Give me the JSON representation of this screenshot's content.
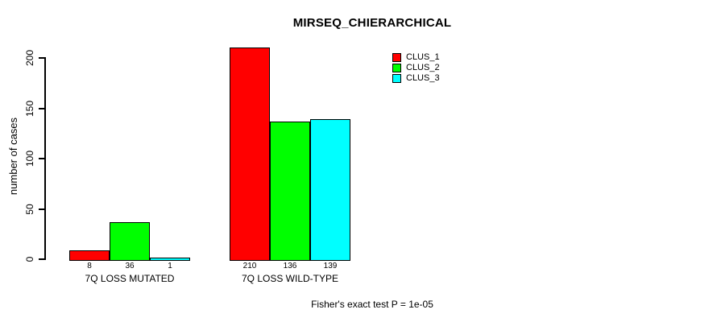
{
  "chart_data": {
    "type": "bar",
    "title": "MIRSEQ_CHIERARCHICAL",
    "xlabel": "",
    "ylabel": "number of cases",
    "categories": [
      "7Q LOSS MUTATED",
      "7Q LOSS WILD-TYPE"
    ],
    "series": [
      {
        "name": "CLUS_1",
        "color": "#ff0000",
        "values": [
          8,
          210
        ]
      },
      {
        "name": "CLUS_2",
        "color": "#00ff00",
        "values": [
          36,
          136
        ]
      },
      {
        "name": "CLUS_3",
        "color": "#00ffff",
        "values": [
          1,
          139
        ]
      }
    ],
    "yticks": [
      0,
      50,
      100,
      150,
      200
    ],
    "ylim": [
      0,
      210
    ],
    "grid": false,
    "legend_position": "top-right",
    "bar_border_color": "#000000",
    "annotation": "Fisher's exact test P = 1e-05"
  },
  "colors": {
    "background": "#ffffff",
    "axis": "#000000",
    "text": "#000000"
  }
}
